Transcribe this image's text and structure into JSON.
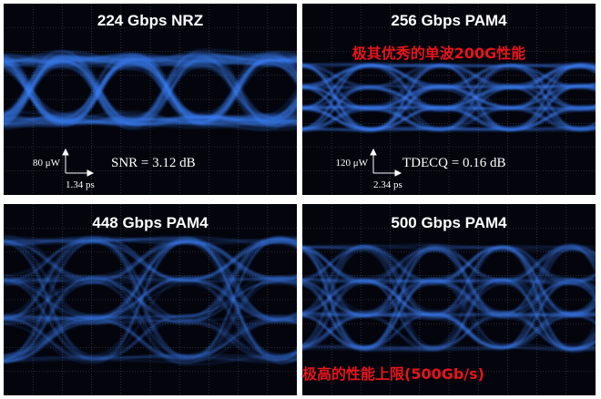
{
  "panels": [
    {
      "title": "224 Gbps NRZ",
      "scale_y": "80 μW",
      "scale_x": "1.34 ps",
      "measurement": "SNR = 3.12 dB"
    },
    {
      "title": "256 Gbps PAM4",
      "caption": "极其优秀的单波200G性能",
      "scale_y": "120 μW",
      "scale_x": "2.34 ps",
      "measurement": "TDECQ = 0.16 dB"
    },
    {
      "title": "448 Gbps PAM4"
    },
    {
      "title": "500 Gbps PAM4",
      "caption": "极高的性能上限(500Gb/s)"
    }
  ]
}
